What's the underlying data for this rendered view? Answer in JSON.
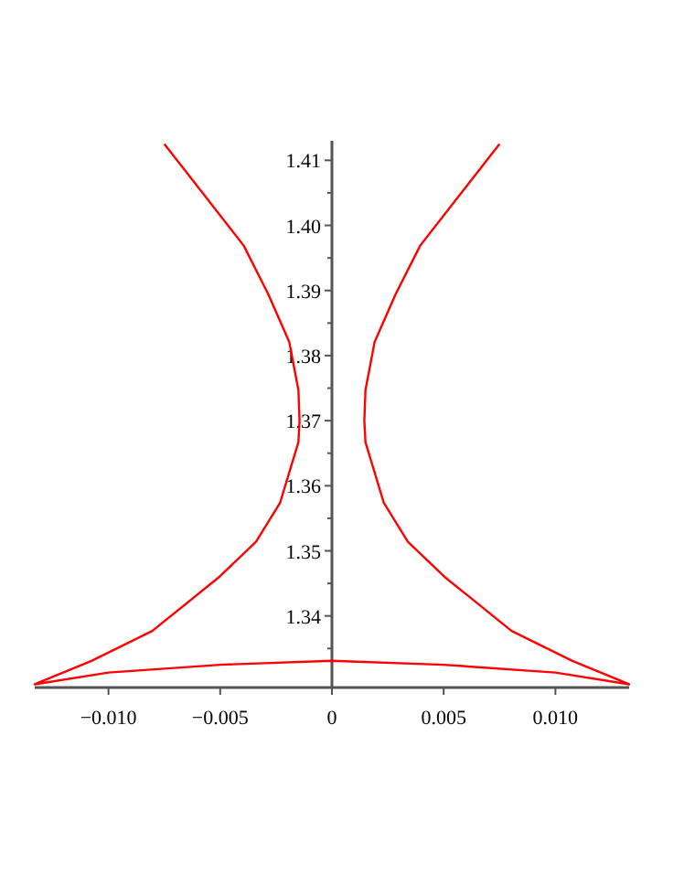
{
  "chart_data": {
    "type": "line",
    "xlim": [
      -0.0133,
      0.0133
    ],
    "ylim": [
      1.329,
      1.413
    ],
    "xticks": [
      {
        "value": -0.01,
        "label": "−0.010"
      },
      {
        "value": -0.005,
        "label": "−0.005"
      },
      0,
      {
        "value": 0.005,
        "label": "0.005"
      },
      {
        "value": 0.01,
        "label": "0.010"
      }
    ],
    "yticks": [
      {
        "value": 1.335,
        "label": null
      },
      {
        "value": 1.34,
        "label": "1.34"
      },
      {
        "value": 1.345,
        "label": null
      },
      {
        "value": 1.35,
        "label": "1.35"
      },
      {
        "value": 1.355,
        "label": null
      },
      {
        "value": 1.36,
        "label": "1.36"
      },
      {
        "value": 1.365,
        "label": null
      },
      {
        "value": 1.37,
        "label": "1.37"
      },
      {
        "value": 1.375,
        "label": null
      },
      {
        "value": 1.38,
        "label": "1.38"
      },
      {
        "value": 1.385,
        "label": null
      },
      {
        "value": 1.39,
        "label": "1.39"
      },
      {
        "value": 1.395,
        "label": null
      },
      {
        "value": 1.4,
        "label": "1.40"
      },
      {
        "value": 1.405,
        "label": null
      },
      {
        "value": 1.41,
        "label": "1.41"
      }
    ],
    "grid": false,
    "marker": "none",
    "line_style": "solid",
    "series": [
      {
        "color": "#ff0000",
        "x": [
          -0.0075,
          -0.00586,
          -0.00395,
          -0.00286,
          -0.00191,
          -0.0015,
          -0.00145,
          -0.0015,
          -0.00232,
          -0.0034,
          -0.00504,
          -0.00804,
          -0.01076,
          -0.0133,
          -0.01,
          -0.005,
          0,
          0.005,
          0.01,
          0.0133,
          0.01076,
          0.00804,
          0.00504,
          0.0034,
          0.00232,
          0.0015,
          0.00145,
          0.0015,
          0.00191,
          0.00286,
          0.00395,
          0.00586,
          0.0075
        ],
        "values": [
          1.4125,
          1.4053,
          1.3969,
          1.3895,
          1.3821,
          1.3747,
          1.37,
          1.3667,
          1.3574,
          1.3514,
          1.346,
          1.3377,
          1.3331,
          1.3295,
          1.3313,
          1.3325,
          1.3331,
          1.3325,
          1.3313,
          1.3295,
          1.3331,
          1.3377,
          1.346,
          1.3514,
          1.3574,
          1.3667,
          1.37,
          1.3747,
          1.3821,
          1.3895,
          1.3969,
          1.4053,
          1.4125
        ]
      }
    ]
  }
}
